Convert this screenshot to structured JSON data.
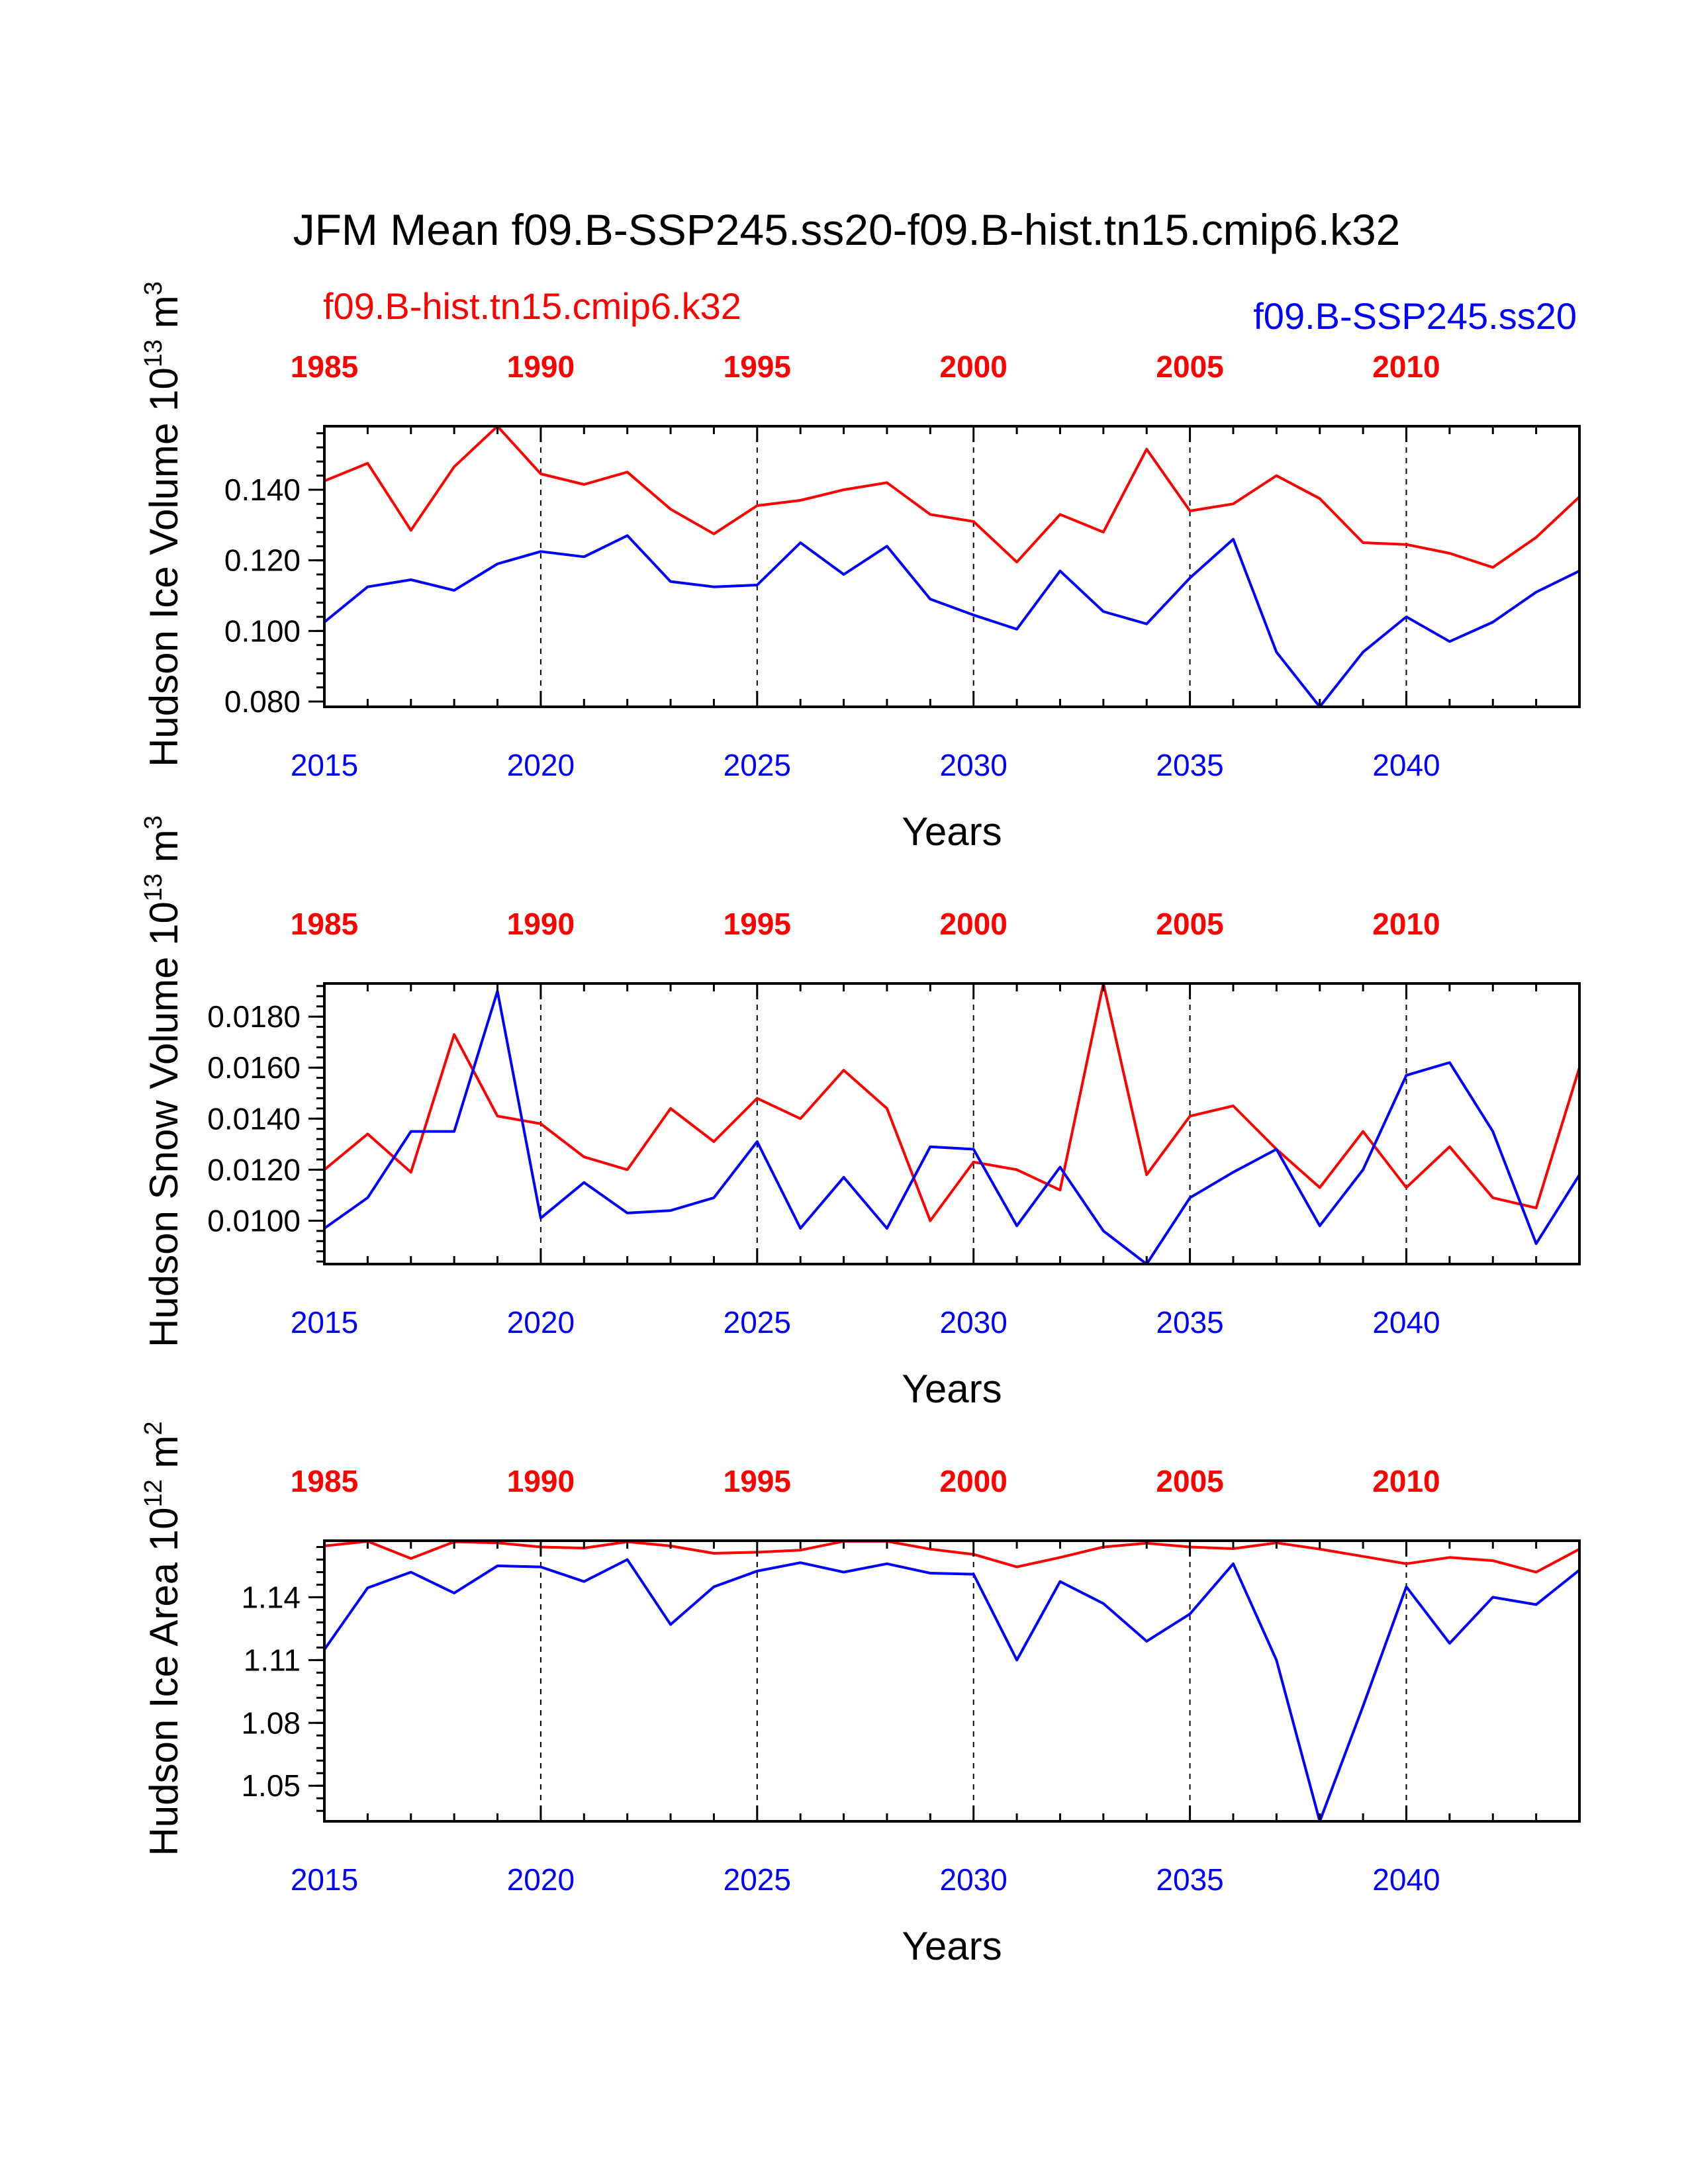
{
  "title": "JFM Mean f09.B-SSP245.ss20-f09.B-hist.tn15.cmip6.k32",
  "colors": {
    "hist": "#ff0000",
    "ssp": "#0000ff",
    "axis": "#000000"
  },
  "legend": {
    "hist_label": "f09.B-hist.tn15.cmip6.k32",
    "ssp_label": "f09.B-SSP245.ss20"
  },
  "chart_data": [
    {
      "type": "line",
      "ylabel": "Hudson Ice Volume 10",
      "ylabel_exp": "13",
      "ylabel_unit": " m",
      "ylabel_unit_exp": "3",
      "xlabel": "Years",
      "bottom_axis_years": [
        2015,
        2044
      ],
      "top_axis_years": [
        1985,
        2014
      ],
      "bottom_ticks": [
        "2015",
        "2020",
        "2025",
        "2030",
        "2035",
        "2040"
      ],
      "top_ticks": [
        "1985",
        "1990",
        "1995",
        "2000",
        "2005",
        "2010"
      ],
      "ylim": [
        0.0785,
        0.158
      ],
      "yticks": [
        0.08,
        0.1,
        0.12,
        0.14
      ],
      "ytick_labels": [
        "0.080",
        "0.100",
        "0.120",
        "0.140"
      ],
      "yminor_step": 0.004,
      "series": [
        {
          "name": "f09.B-hist.tn15.cmip6.k32",
          "color": "#ff0000",
          "values": [
            0.1425,
            0.1475,
            0.1285,
            0.1465,
            0.158,
            0.1445,
            0.1415,
            0.145,
            0.1345,
            0.1275,
            0.1355,
            0.137,
            0.14,
            0.142,
            0.133,
            0.131,
            0.1195,
            0.133,
            0.128,
            0.1515,
            0.134,
            0.136,
            0.144,
            0.1375,
            0.125,
            0.1245,
            0.122,
            0.118,
            0.1265,
            0.138
          ]
        },
        {
          "name": "f09.B-SSP245.ss20",
          "color": "#0000ff",
          "values": [
            0.1025,
            0.1125,
            0.1145,
            0.1115,
            0.119,
            0.1225,
            0.121,
            0.127,
            0.114,
            0.1125,
            0.113,
            0.125,
            0.116,
            0.124,
            0.109,
            0.1045,
            0.1005,
            0.117,
            0.1055,
            0.102,
            0.115,
            0.126,
            0.094,
            0.0785,
            0.094,
            0.104,
            0.097,
            0.1025,
            0.111,
            0.117
          ]
        }
      ]
    },
    {
      "type": "line",
      "ylabel": "Hudson Snow Volume 10",
      "ylabel_exp": "13",
      "ylabel_unit": " m",
      "ylabel_unit_exp": "3",
      "xlabel": "Years",
      "bottom_axis_years": [
        2015,
        2044
      ],
      "top_axis_years": [
        1985,
        2014
      ],
      "bottom_ticks": [
        "2015",
        "2020",
        "2025",
        "2030",
        "2035",
        "2040"
      ],
      "top_ticks": [
        "1985",
        "1990",
        "1995",
        "2000",
        "2005",
        "2010"
      ],
      "ylim": [
        0.0083,
        0.0193
      ],
      "yticks": [
        0.01,
        0.012,
        0.014,
        0.016,
        0.018
      ],
      "ytick_labels": [
        "0.0100",
        "0.0120",
        "0.0140",
        "0.0160",
        "0.0180"
      ],
      "yminor_step": 0.0004,
      "series": [
        {
          "name": "f09.B-hist.tn15.cmip6.k32",
          "color": "#ff0000",
          "values": [
            0.012,
            0.0134,
            0.0119,
            0.0173,
            0.0141,
            0.0138,
            0.0125,
            0.012,
            0.0144,
            0.0131,
            0.0148,
            0.014,
            0.0159,
            0.0144,
            0.01,
            0.0123,
            0.012,
            0.0112,
            0.0193,
            0.0118,
            0.0141,
            0.0145,
            0.0128,
            0.0113,
            0.0135,
            0.0113,
            0.0129,
            0.0109,
            0.0105,
            0.016
          ]
        },
        {
          "name": "f09.B-SSP245.ss20",
          "color": "#0000ff",
          "values": [
            0.0097,
            0.0109,
            0.0135,
            0.0135,
            0.019,
            0.0101,
            0.0115,
            0.0103,
            0.0104,
            0.0109,
            0.0131,
            0.0097,
            0.0117,
            0.0097,
            0.0129,
            0.0128,
            0.0098,
            0.0121,
            0.0096,
            0.0083,
            0.0109,
            0.0119,
            0.0128,
            0.0098,
            0.012,
            0.0157,
            0.0162,
            0.0135,
            0.0091,
            0.0118
          ]
        }
      ]
    },
    {
      "type": "line",
      "ylabel": "Hudson Ice Area 10",
      "ylabel_exp": "12",
      "ylabel_unit": " m",
      "ylabel_unit_exp": "2",
      "xlabel": "Years",
      "bottom_axis_years": [
        2015,
        2044
      ],
      "top_axis_years": [
        1985,
        2014
      ],
      "bottom_ticks": [
        "2015",
        "2020",
        "2025",
        "2030",
        "2035",
        "2040"
      ],
      "top_ticks": [
        "1985",
        "1990",
        "1995",
        "2000",
        "2005",
        "2010"
      ],
      "ylim": [
        1.033,
        1.167
      ],
      "yticks": [
        1.05,
        1.08,
        1.11,
        1.14
      ],
      "ytick_labels": [
        "1.05",
        "1.08",
        "1.11",
        "1.14"
      ],
      "yminor_step": 0.006,
      "series": [
        {
          "name": "f09.B-hist.tn15.cmip6.k32",
          "color": "#ff0000",
          "values": [
            1.1645,
            1.1667,
            1.1585,
            1.1665,
            1.166,
            1.164,
            1.1635,
            1.1665,
            1.1645,
            1.161,
            1.1615,
            1.1625,
            1.1667,
            1.1667,
            1.163,
            1.1605,
            1.1545,
            1.159,
            1.164,
            1.1658,
            1.164,
            1.1632,
            1.166,
            1.163,
            1.1595,
            1.156,
            1.159,
            1.1575,
            1.152,
            1.163
          ]
        },
        {
          "name": "f09.B-SSP245.ss20",
          "color": "#0000ff",
          "values": [
            1.115,
            1.1445,
            1.152,
            1.142,
            1.155,
            1.1545,
            1.1475,
            1.158,
            1.127,
            1.145,
            1.1525,
            1.1565,
            1.152,
            1.156,
            1.1515,
            1.151,
            1.11,
            1.1475,
            1.137,
            1.119,
            1.132,
            1.156,
            1.11,
            1.033,
            1.088,
            1.145,
            1.118,
            1.14,
            1.1365,
            1.153
          ]
        }
      ]
    }
  ]
}
